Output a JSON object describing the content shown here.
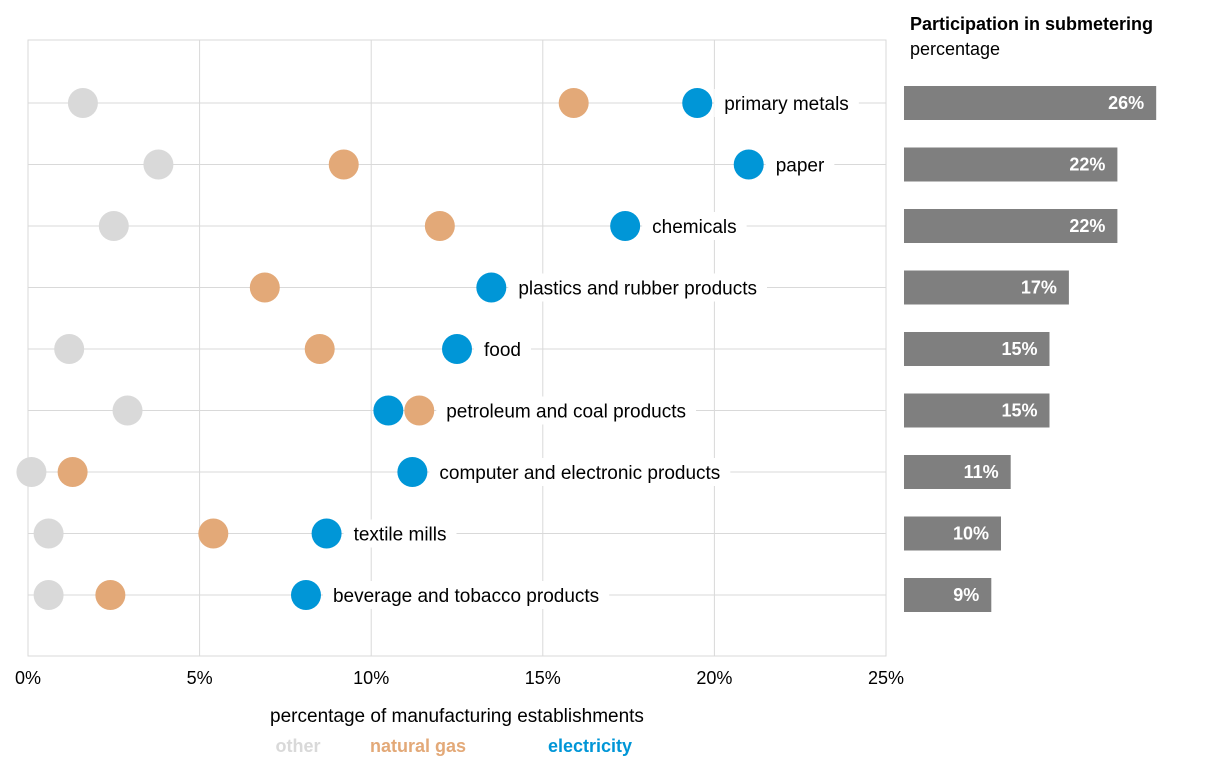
{
  "chart_data": [
    {
      "type": "scatter",
      "subtype": "dot-plot",
      "xlabel": "percentage of manufacturing establishments",
      "xlim": [
        0,
        25
      ],
      "x_ticks": [
        "0%",
        "5%",
        "10%",
        "15%",
        "20%",
        "25%"
      ],
      "grid": true,
      "legend_position": "bottom",
      "categories": [
        "primary metals",
        "paper",
        "chemicals",
        "plastics and rubber products",
        "food",
        "petroleum and coal products",
        "computer and electronic products",
        "textile mills",
        "beverage and tobacco products"
      ],
      "series": [
        {
          "name": "other",
          "color": "#d9d9d9",
          "values": [
            1.6,
            3.8,
            2.5,
            null,
            1.2,
            2.9,
            0.1,
            0.6,
            0.6
          ]
        },
        {
          "name": "natural gas",
          "color": "#e3a978",
          "values": [
            15.9,
            9.2,
            12.0,
            6.9,
            8.5,
            11.4,
            1.3,
            5.4,
            2.4
          ]
        },
        {
          "name": "electricity",
          "color": "#0096d7",
          "values": [
            19.5,
            21.0,
            17.4,
            13.5,
            12.5,
            10.5,
            11.2,
            8.7,
            8.1
          ]
        }
      ]
    },
    {
      "type": "bar",
      "orientation": "horizontal",
      "title": "Participation in submetering",
      "subtitle": "percentage",
      "color": "#7f7f7f",
      "categories": [
        "primary metals",
        "paper",
        "chemicals",
        "plastics and rubber products",
        "food",
        "petroleum and coal products",
        "computer and electronic products",
        "textile mills",
        "beverage and tobacco products"
      ],
      "values": [
        26,
        22,
        22,
        17,
        15,
        15,
        11,
        10,
        9
      ],
      "labels": [
        "26%",
        "22%",
        "22%",
        "17%",
        "15%",
        "15%",
        "11%",
        "10%",
        "9%"
      ]
    }
  ]
}
